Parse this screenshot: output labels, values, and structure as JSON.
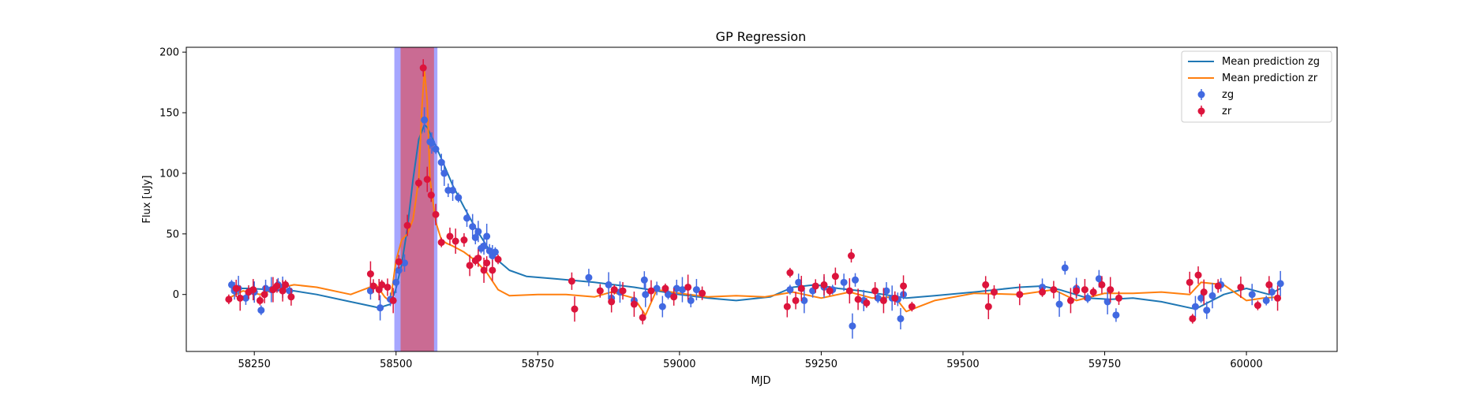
{
  "chart_data": {
    "type": "scatter",
    "title": "GP Regression",
    "xlabel": "MJD",
    "ylabel": "Flux [uJy]",
    "xlim": [
      58130,
      60160
    ],
    "ylim": [
      -47,
      204
    ],
    "xticks": [
      58250,
      58500,
      58750,
      59000,
      59250,
      59500,
      59750,
      60000
    ],
    "yticks": [
      0,
      50,
      100,
      150,
      200
    ],
    "grid": false,
    "legend_position": "top-right",
    "shaded_regions": [
      {
        "x0": 58497,
        "x1": 58573,
        "color": "#8080ff",
        "alpha": 0.7
      },
      {
        "x0": 58508,
        "x1": 58567,
        "color": "#d06080",
        "alpha": 0.85
      }
    ],
    "lines": [
      {
        "name": "Mean prediction zg",
        "color": "#1f77b4",
        "x": [
          58210,
          58240,
          58280,
          58320,
          58360,
          58400,
          58440,
          58470,
          58490,
          58500,
          58510,
          58520,
          58530,
          58540,
          58550,
          58555,
          58565,
          58580,
          58600,
          58620,
          58640,
          58660,
          58680,
          58700,
          58730,
          58780,
          58850,
          58920,
          58960,
          59000,
          59050,
          59100,
          59160,
          59200,
          59240,
          59280,
          59320,
          59360,
          59400,
          59450,
          59520,
          59600,
          59640,
          59670,
          59720,
          59760,
          59800,
          59850,
          59910,
          59960,
          60000,
          60040,
          60060
        ],
        "y": [
          5,
          5,
          4,
          3,
          0,
          -4,
          -8,
          -11,
          -8,
          5,
          25,
          55,
          95,
          128,
          140,
          138,
          128,
          112,
          90,
          72,
          55,
          40,
          28,
          20,
          15,
          13,
          10,
          6,
          3,
          0,
          -3,
          -5,
          -2,
          6,
          8,
          5,
          3,
          0,
          -3,
          -1,
          2,
          6,
          7,
          4,
          -3,
          -4,
          -3,
          -6,
          -12,
          0,
          5,
          0,
          5
        ]
      },
      {
        "name": "Mean prediction zr",
        "color": "#ff7f0e",
        "x": [
          58205,
          58230,
          58260,
          58290,
          58320,
          58360,
          58420,
          58465,
          58480,
          58490,
          58500,
          58510,
          58520,
          58530,
          58540,
          58545,
          58550,
          58555,
          58560,
          58570,
          58580,
          58590,
          58600,
          58620,
          58640,
          58660,
          58680,
          58700,
          58750,
          58800,
          58850,
          58880,
          58920,
          58940,
          58960,
          59000,
          59050,
          59100,
          59150,
          59200,
          59250,
          59300,
          59340,
          59380,
          59400,
          59450,
          59520,
          59600,
          59660,
          59700,
          59750,
          59800,
          59850,
          59900,
          59920,
          59960,
          60000,
          60030,
          60060
        ],
        "y": [
          -3,
          3,
          0,
          5,
          8,
          6,
          0,
          8,
          -2,
          -6,
          28,
          45,
          50,
          62,
          95,
          150,
          185,
          160,
          95,
          60,
          45,
          42,
          40,
          35,
          28,
          18,
          4,
          -1,
          0,
          0,
          -2,
          2,
          -3,
          -17,
          4,
          1,
          -2,
          -1,
          -2,
          2,
          -3,
          2,
          -3,
          -2,
          -14,
          -5,
          1,
          0,
          4,
          -5,
          1,
          1,
          2,
          0,
          10,
          8,
          -5,
          -3,
          -2
        ]
      }
    ],
    "series": [
      {
        "name": "zg",
        "color": "#4169e1",
        "x": [
          58210,
          58215,
          58222,
          58235,
          58250,
          58262,
          58270,
          58280,
          58292,
          58300,
          58312,
          58455,
          58472,
          58490,
          58500,
          58505,
          58515,
          58550,
          58560,
          58563,
          58570,
          58580,
          58585,
          58592,
          58600,
          58610,
          58625,
          58635,
          58640,
          58645,
          58650,
          58655,
          58660,
          58665,
          58670,
          58675,
          58840,
          58875,
          58880,
          58895,
          58920,
          58938,
          58940,
          58960,
          58970,
          58980,
          58995,
          59005,
          59020,
          59030,
          59195,
          59210,
          59220,
          59235,
          59255,
          59270,
          59290,
          59305,
          59310,
          59325,
          59350,
          59365,
          59375,
          59385,
          59390,
          59395,
          59640,
          59670,
          59680,
          59700,
          59720,
          59740,
          59755,
          59770,
          59910,
          59920,
          59930,
          59940,
          59955,
          60010,
          60035,
          60045,
          60060
        ],
        "y": [
          8,
          3,
          5,
          -3,
          2,
          -13,
          5,
          4,
          8,
          6,
          3,
          3,
          -11,
          -4,
          10,
          20,
          26,
          144,
          126,
          125,
          120,
          109,
          100,
          86,
          86,
          80,
          63,
          56,
          47,
          52,
          38,
          40,
          48,
          36,
          32,
          35,
          14,
          8,
          -3,
          2,
          -5,
          12,
          0,
          5,
          -10,
          0,
          5,
          4,
          -5,
          4,
          4,
          10,
          -5,
          3,
          6,
          4,
          10,
          -26,
          12,
          -5,
          -3,
          3,
          -3,
          -4,
          -20,
          0,
          6,
          -8,
          22,
          5,
          -3,
          13,
          -6,
          -17,
          -10,
          -3,
          -13,
          -1,
          8,
          0,
          -5,
          2,
          9
        ]
      },
      {
        "name": "zr",
        "color": "#dc143c",
        "x": [
          58205,
          58218,
          58225,
          58240,
          58248,
          58260,
          58268,
          58283,
          58290,
          58300,
          58305,
          58315,
          58455,
          58460,
          58470,
          58475,
          58485,
          58495,
          58505,
          58520,
          58540,
          58548,
          58555,
          58562,
          58570,
          58580,
          58595,
          58605,
          58620,
          58630,
          58640,
          58645,
          58655,
          58660,
          58670,
          58680,
          58810,
          58815,
          58860,
          58880,
          58885,
          58900,
          58920,
          58935,
          58950,
          58975,
          58990,
          59015,
          59040,
          59190,
          59195,
          59205,
          59215,
          59240,
          59255,
          59265,
          59275,
          59300,
          59303,
          59315,
          59330,
          59345,
          59360,
          59380,
          59395,
          59410,
          59540,
          59545,
          59555,
          59600,
          59640,
          59660,
          59690,
          59700,
          59715,
          59730,
          59745,
          59760,
          59775,
          59900,
          59905,
          59915,
          59925,
          59950,
          59990,
          60020,
          60040,
          60055
        ],
        "y": [
          -4,
          5,
          -3,
          2,
          4,
          -5,
          0,
          4,
          7,
          3,
          8,
          -2,
          17,
          7,
          4,
          8,
          6,
          -5,
          27,
          57,
          92,
          187,
          95,
          82,
          66,
          43,
          48,
          44,
          45,
          24,
          28,
          30,
          20,
          26,
          20,
          29,
          11,
          -12,
          3,
          -6,
          4,
          3,
          -8,
          -19,
          3,
          5,
          -2,
          6,
          1,
          -10,
          18,
          -5,
          5,
          7,
          8,
          3,
          15,
          3,
          32,
          -4,
          -7,
          3,
          -5,
          -3,
          7,
          -10,
          8,
          -10,
          2,
          0,
          2,
          4,
          -5,
          3,
          4,
          2,
          8,
          4,
          -3,
          10,
          -20,
          16,
          2,
          7,
          6,
          -9,
          8,
          -3
        ]
      }
    ]
  }
}
